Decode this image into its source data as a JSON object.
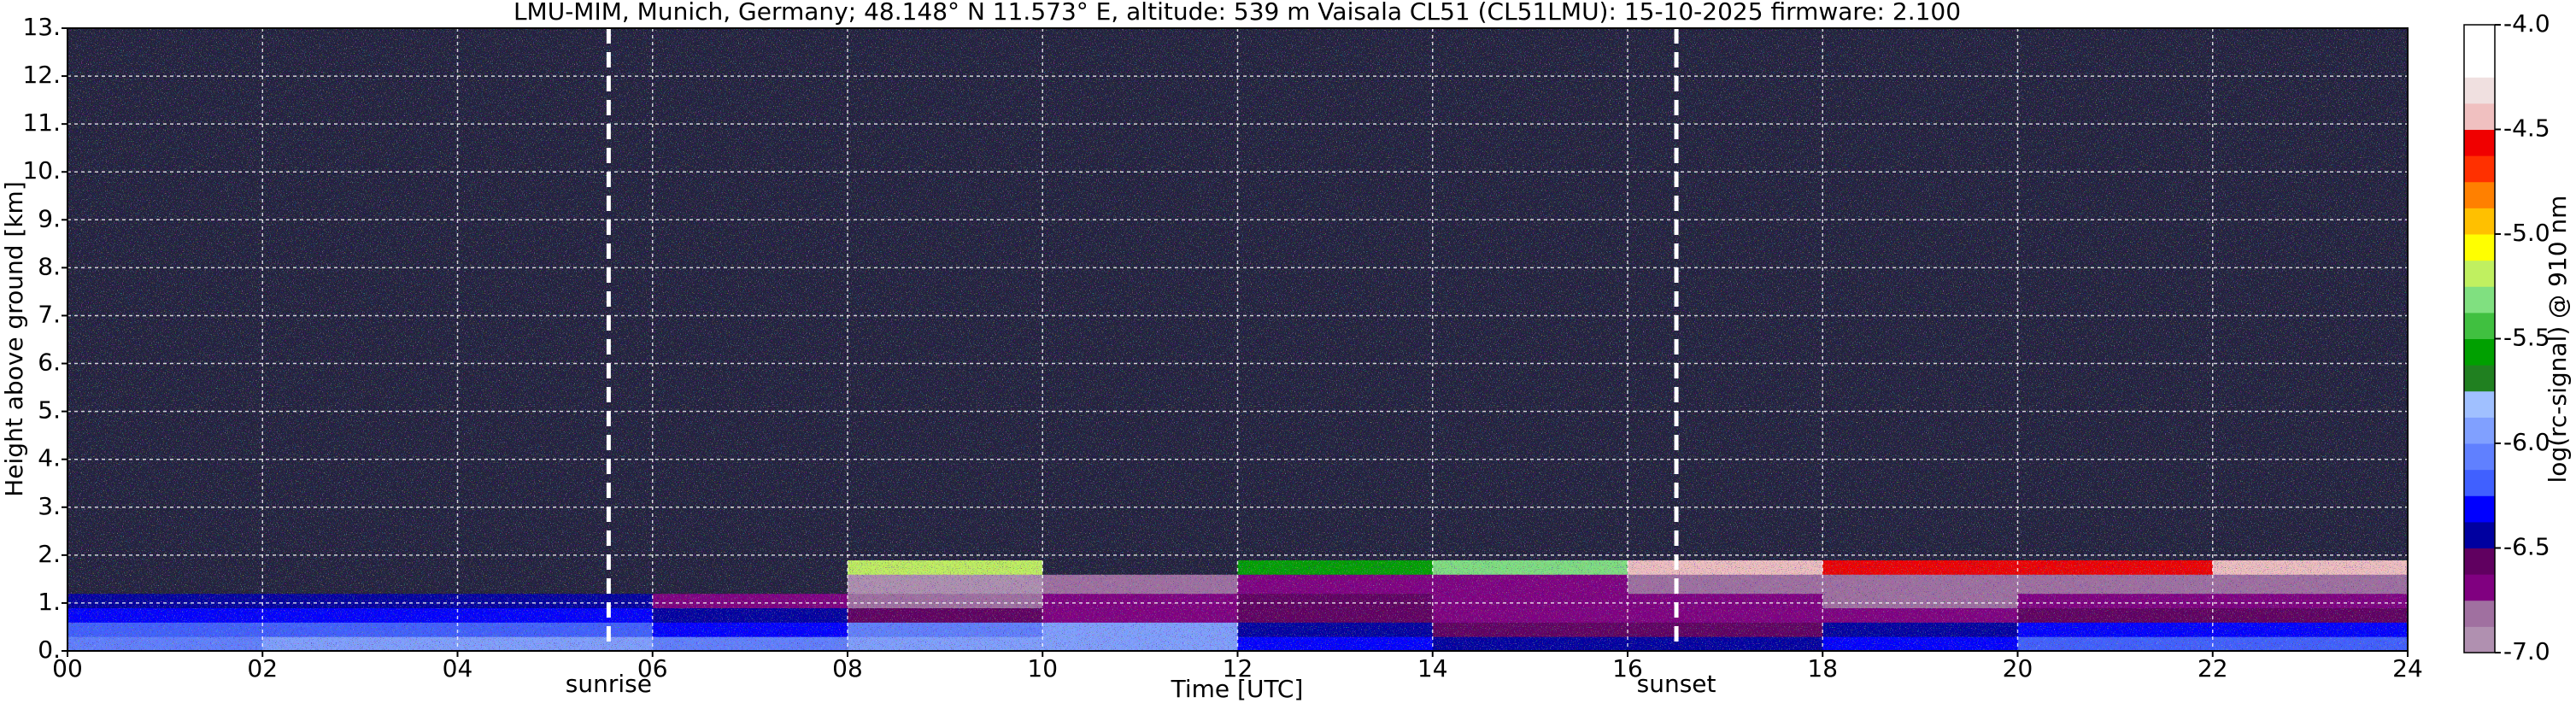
{
  "chart_data": {
    "type": "heatmap",
    "title": "LMU-MIM, Munich, Germany; 48.148° N 11.573° E, altitude: 539 m    Vaisala CL51 (CL51LMU): 15-10-2025    firmware: 2.100",
    "x_label": "Time [UTC]",
    "y_label": "Height above ground [km]",
    "colorbar_label": "log(rc-signal) @ 910 nm",
    "xlim": [
      0,
      24
    ],
    "xticks": [
      {
        "value": 0,
        "label": "00"
      },
      {
        "value": 2,
        "label": "02"
      },
      {
        "value": 4,
        "label": "04"
      },
      {
        "value": 6,
        "label": "06"
      },
      {
        "value": 8,
        "label": "08"
      },
      {
        "value": 10,
        "label": "10"
      },
      {
        "value": 12,
        "label": "12"
      },
      {
        "value": 14,
        "label": "14"
      },
      {
        "value": 16,
        "label": "16"
      },
      {
        "value": 18,
        "label": "18"
      },
      {
        "value": 20,
        "label": "20"
      },
      {
        "value": 22,
        "label": "22"
      },
      {
        "value": 24,
        "label": "24"
      }
    ],
    "ylim": [
      0,
      13
    ],
    "yticks": [
      {
        "value": 0,
        "label": "0."
      },
      {
        "value": 1,
        "label": "1."
      },
      {
        "value": 2,
        "label": "2."
      },
      {
        "value": 3,
        "label": "3."
      },
      {
        "value": 4,
        "label": "4."
      },
      {
        "value": 5,
        "label": "5."
      },
      {
        "value": 6,
        "label": "6."
      },
      {
        "value": 7,
        "label": "7."
      },
      {
        "value": 8,
        "label": "8."
      },
      {
        "value": 9,
        "label": "9."
      },
      {
        "value": 10,
        "label": "10."
      },
      {
        "value": 11,
        "label": "11."
      },
      {
        "value": 12,
        "label": "12."
      },
      {
        "value": 13,
        "label": "13."
      }
    ],
    "grid": true,
    "clim": [
      -7,
      -4
    ],
    "cticks": [
      {
        "value": -4,
        "label": "-4.0"
      },
      {
        "value": -4.5,
        "label": "-4.5"
      },
      {
        "value": -5,
        "label": "-5.0"
      },
      {
        "value": -5.5,
        "label": "-5.5"
      },
      {
        "value": -6,
        "label": "-6.0"
      },
      {
        "value": -6.5,
        "label": "-6.5"
      },
      {
        "value": -7,
        "label": "-7.0"
      }
    ],
    "colormap": [
      "#b090b0",
      "#a070a0",
      "#800080",
      "#600060",
      "#0000a0",
      "#0000ff",
      "#4060ff",
      "#6080ff",
      "#80a0ff",
      "#a0c0ff",
      "#208020",
      "#00a000",
      "#40c040",
      "#80e080",
      "#c0f060",
      "#ffff00",
      "#ffc000",
      "#ff8000",
      "#ff3000",
      "#f00000",
      "#f0c0c0",
      "#f0e0e0",
      "#ffffff",
      "#ffffff"
    ],
    "under_color": "#22223c",
    "x_edges": [
      0,
      2,
      4,
      6,
      8,
      10,
      12,
      14,
      16,
      18,
      20,
      22,
      24
    ],
    "y_edges": [
      0,
      0.3,
      0.6,
      0.9,
      1.2,
      1.6,
      1.9,
      2.5,
      3,
      4,
      5,
      6,
      7,
      8,
      9,
      10,
      11,
      12,
      13
    ],
    "z": [
      [
        -6.1,
        -6.0,
        -5.95,
        -6.1,
        -6.0,
        -5.9,
        -6.3,
        -6.5,
        -6.5,
        -6.3,
        -6.2,
        -6.2
      ],
      [
        -6.2,
        -6.15,
        -6.2,
        -6.3,
        -6.1,
        -6.0,
        -6.4,
        -6.6,
        -6.55,
        -6.4,
        -6.3,
        -6.3
      ],
      [
        -6.35,
        -6.3,
        -6.3,
        -6.5,
        -6.6,
        -6.7,
        -6.6,
        -6.7,
        -6.65,
        -6.7,
        -6.6,
        -6.6
      ],
      [
        -6.4,
        -6.45,
        -6.5,
        -6.7,
        -6.8,
        -6.75,
        -6.6,
        -6.7,
        -6.7,
        -6.8,
        -6.75,
        -6.7
      ],
      [
        -7.3,
        -7.3,
        -7.3,
        -7.2,
        -6.9,
        -6.8,
        -6.7,
        -6.75,
        -6.8,
        -6.85,
        -6.8,
        -6.8
      ],
      [
        -7.3,
        -7.3,
        -7.3,
        -7.3,
        -5.2,
        -7.1,
        -5.6,
        -5.3,
        -4.5,
        -4.6,
        -4.6,
        -4.5
      ],
      [
        -7.2,
        -7.2,
        -7.2,
        -7.2,
        -7.2,
        -7.2,
        -7.2,
        -7.2,
        -7.2,
        -7.2,
        -7.2,
        -7.2
      ],
      [
        -7.3,
        -7.3,
        -7.3,
        -7.3,
        -7.3,
        -7.3,
        -7.3,
        -7.3,
        -7.3,
        -7.3,
        -7.3,
        -7.3
      ],
      [
        -7.3,
        -7.3,
        -7.3,
        -7.3,
        -7.3,
        -7.3,
        -7.3,
        -7.3,
        -7.3,
        -7.3,
        -7.3,
        -7.3
      ],
      [
        -7.3,
        -7.3,
        -7.3,
        -7.3,
        -7.3,
        -7.3,
        -7.3,
        -7.3,
        -7.3,
        -7.3,
        -7.3,
        -7.3
      ],
      [
        -7.3,
        -7.3,
        -7.3,
        -7.3,
        -7.3,
        -7.3,
        -7.3,
        -7.3,
        -7.3,
        -7.3,
        -7.3,
        -7.3
      ],
      [
        -7.3,
        -7.3,
        -7.3,
        -7.3,
        -7.3,
        -7.3,
        -7.3,
        -7.3,
        -7.3,
        -7.3,
        -7.3,
        -7.3
      ],
      [
        -7.3,
        -7.3,
        -7.3,
        -7.3,
        -7.3,
        -7.3,
        -7.3,
        -7.3,
        -7.3,
        -7.3,
        -7.3,
        -7.3
      ],
      [
        -7.3,
        -7.3,
        -7.3,
        -7.3,
        -7.3,
        -7.3,
        -7.3,
        -7.3,
        -7.3,
        -7.3,
        -7.3,
        -7.3
      ],
      [
        -7.3,
        -7.3,
        -7.3,
        -7.3,
        -7.3,
        -7.3,
        -7.3,
        -7.3,
        -7.3,
        -7.3,
        -7.3,
        -7.3
      ],
      [
        -7.3,
        -7.3,
        -7.3,
        -7.3,
        -7.3,
        -7.3,
        -7.3,
        -7.3,
        -7.3,
        -7.3,
        -7.3,
        -7.3
      ],
      [
        -7.3,
        -7.3,
        -7.3,
        -7.3,
        -7.3,
        -7.3,
        -7.3,
        -7.3,
        -7.3,
        -7.3,
        -7.3,
        -7.3
      ],
      [
        -7.3,
        -7.3,
        -7.3,
        -7.3,
        -7.3,
        -7.3,
        -7.3,
        -7.3,
        -7.3,
        -7.3,
        -7.3,
        -7.3
      ]
    ],
    "annotations": [
      {
        "text": "sunrise",
        "x": 5.55
      },
      {
        "text": "sunset",
        "x": 16.5
      }
    ]
  }
}
